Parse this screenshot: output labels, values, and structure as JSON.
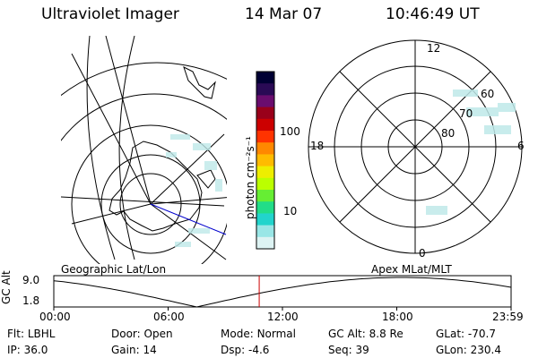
{
  "header": {
    "instrument": "Ultraviolet Imager",
    "date": "14 Mar 07",
    "time": "10:46:49 UT"
  },
  "left_panel": {
    "caption": "Geographic Lat/Lon"
  },
  "right_panel": {
    "caption": "Apex MLat/MLT",
    "mlt_labels": {
      "top": "12",
      "left": "18",
      "right": "6",
      "bottom": "0"
    },
    "lat_labels": [
      "60",
      "70",
      "80"
    ]
  },
  "colorbar": {
    "unit_label": "photon cm⁻²s⁻¹",
    "ticks": [
      "100",
      "10"
    ],
    "colors": [
      "#000033",
      "#2a0a55",
      "#6a0d6e",
      "#99001a",
      "#cc0000",
      "#ff3300",
      "#ff8800",
      "#ffbb00",
      "#eeee00",
      "#bbff00",
      "#66ee33",
      "#22dd88",
      "#22d4cc",
      "#99e6e6",
      "#ddf3f3"
    ]
  },
  "altitude_plot": {
    "ylabel": "GC Alt",
    "yticks": [
      "9.0",
      "1.8"
    ],
    "xticks": [
      "00:00",
      "06:00",
      "12:00",
      "18:00",
      "23:59"
    ],
    "current_time_marker_hour": 10.78,
    "marker_color": "#cc0000"
  },
  "info": {
    "row1": [
      {
        "label": "Flt:",
        "value": "LBHL"
      },
      {
        "label": "Door:",
        "value": "Open"
      },
      {
        "label": "Mode:",
        "value": "Normal"
      },
      {
        "label": "GC Alt:",
        "value": "8.8 Re"
      },
      {
        "label": "GLat:",
        "value": "-70.7"
      }
    ],
    "row2": [
      {
        "label": "IP:",
        "value": "36.0"
      },
      {
        "label": "Gain:",
        "value": "14"
      },
      {
        "label": "Dsp:",
        "value": "-4.6"
      },
      {
        "label": "Seq:",
        "value": "39"
      },
      {
        "label": "GLon:",
        "value": "230.4"
      }
    ]
  }
}
